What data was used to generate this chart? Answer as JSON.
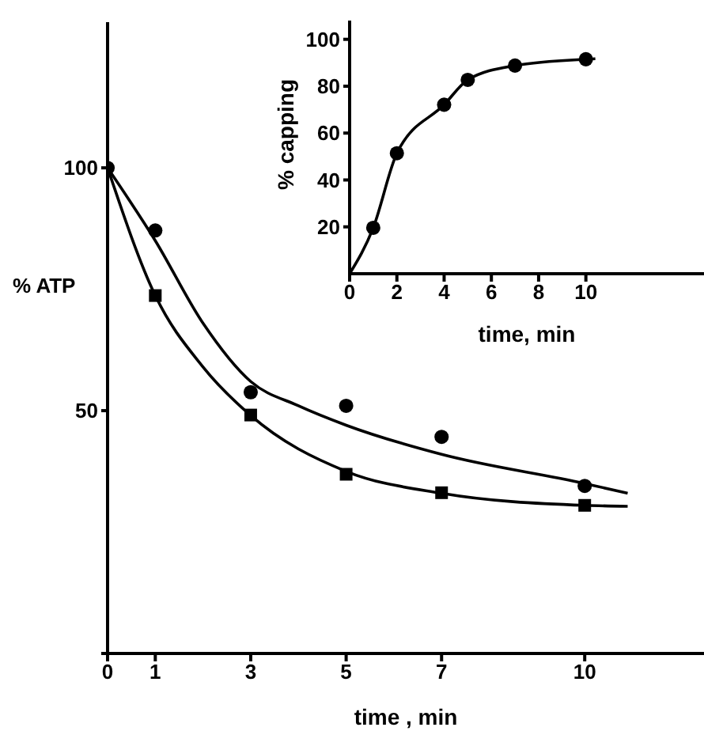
{
  "chart_data": [
    {
      "type": "scatter",
      "xlabel": "time , min",
      "ylabel": "% ATP",
      "xlim": [
        0,
        12.5
      ],
      "xticks": [
        0,
        1,
        3,
        5,
        7,
        10
      ],
      "ylim": [
        0,
        130
      ],
      "yticks": [
        {
          "value": 0,
          "label": null
        },
        50,
        100
      ],
      "grid": false,
      "series": [
        {
          "marker": "circle",
          "color": "#000000",
          "x": [
            0,
            1,
            3,
            5,
            7,
            10
          ],
          "values": [
            100,
            87.1,
            53.8,
            51,
            44.6,
            34.5
          ]
        },
        {
          "marker": "square",
          "color": "#000000",
          "x": [
            1,
            3,
            5,
            7,
            10
          ],
          "values": [
            73.7,
            49.1,
            36.9,
            33.1,
            30.5
          ]
        },
        {
          "type": "line",
          "marker": "none",
          "color": "#000000",
          "x": [
            0,
            1,
            2,
            3,
            4,
            5,
            7,
            10,
            10.9
          ],
          "values": [
            100,
            85,
            68,
            56,
            51,
            47,
            41,
            35,
            33
          ]
        },
        {
          "type": "line",
          "marker": "none",
          "color": "#000000",
          "x": [
            0,
            1,
            2,
            3,
            5,
            7,
            10,
            10.9
          ],
          "values": [
            100,
            73.7,
            59,
            49,
            37.5,
            33,
            30.5,
            30.3
          ]
        }
      ]
    },
    {
      "type": "scatter",
      "xlabel": "time, min",
      "ylabel": "% capping",
      "xlim": [
        0,
        15
      ],
      "xticks": [
        0,
        2,
        4,
        6,
        8,
        10
      ],
      "ylim": [
        0,
        108
      ],
      "yticks": [
        20,
        40,
        60,
        80,
        100
      ],
      "grid": false,
      "series": [
        {
          "type": "line",
          "marker": "none",
          "color": "#000000",
          "x": [
            0,
            1,
            2,
            4,
            5,
            7,
            10,
            10.4
          ],
          "values": [
            0,
            19.6,
            51.4,
            72.1,
            82.7,
            88.8,
            91.5,
            91.7
          ]
        },
        {
          "marker": "circle",
          "color": "#000000",
          "x": [
            1,
            2,
            4,
            5,
            7,
            10
          ],
          "values": [
            19.6,
            51.4,
            72.1,
            82.7,
            88.8,
            91.5
          ]
        }
      ]
    }
  ]
}
